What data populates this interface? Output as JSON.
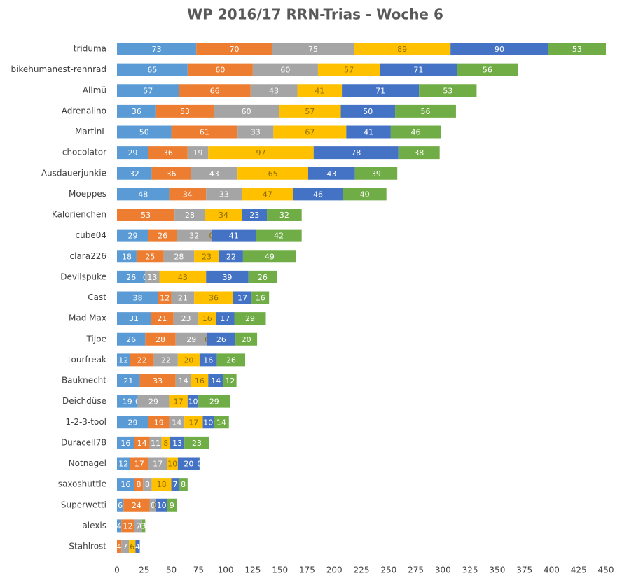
{
  "chart_data": {
    "type": "stacked-bar",
    "orientation": "horizontal",
    "title": "WP 2016/17 RRN-Trias - Woche 6",
    "categories": [
      "triduma",
      "bikehumanest-rennrad",
      "Allmü",
      "Adrenalino",
      "MartinL",
      "chocolator",
      "Ausdauerjunkie",
      "Moeppes",
      "Kalorienchen",
      "cube04",
      "clara226",
      "Devilspuke",
      "Cast",
      "Mad Max",
      "TiJoe",
      "tourfreak",
      "Bauknecht",
      "Deichdüse",
      "1-2-3-tool",
      "Duracell78",
      "Notnagel",
      "saxoshuttle",
      "Superwetti",
      "alexis",
      "Stahlrost"
    ],
    "series": [
      {
        "color": "#5b9bd5",
        "label_color": "#ffffff",
        "values": [
          73,
          65,
          57,
          36,
          50,
          29,
          32,
          48,
          0,
          29,
          18,
          26,
          38,
          31,
          26,
          12,
          21,
          19,
          29,
          16,
          12,
          16,
          6,
          4,
          0
        ]
      },
      {
        "color": "#ed7d31",
        "label_color": "#ffffff",
        "values": [
          70,
          60,
          66,
          53,
          61,
          36,
          36,
          34,
          53,
          26,
          25,
          0,
          12,
          21,
          28,
          22,
          33,
          0,
          19,
          14,
          17,
          8,
          24,
          12,
          4
        ]
      },
      {
        "color": "#a5a5a5",
        "label_color": "#ffffff",
        "values": [
          75,
          60,
          43,
          60,
          33,
          19,
          43,
          33,
          28,
          32,
          28,
          13,
          21,
          23,
          29,
          22,
          14,
          29,
          14,
          11,
          17,
          8,
          6,
          7,
          7
        ]
      },
      {
        "color": "#ffc000",
        "label_color": "#8c6d00",
        "values": [
          89,
          57,
          41,
          57,
          67,
          97,
          65,
          47,
          34,
          0,
          23,
          43,
          36,
          16,
          0,
          20,
          16,
          17,
          17,
          8,
          10,
          18,
          0,
          0,
          6
        ]
      },
      {
        "color": "#4472c4",
        "label_color": "#ffffff",
        "values": [
          90,
          71,
          71,
          50,
          41,
          78,
          43,
          46,
          23,
          41,
          22,
          39,
          17,
          17,
          26,
          16,
          14,
          10,
          10,
          13,
          20,
          7,
          10,
          0,
          4
        ]
      },
      {
        "color": "#70ad47",
        "label_color": "#ffffff",
        "values": [
          53,
          56,
          53,
          56,
          46,
          38,
          39,
          40,
          32,
          42,
          49,
          26,
          16,
          29,
          20,
          26,
          12,
          29,
          14,
          23,
          0,
          8,
          9,
          3,
          0
        ]
      }
    ],
    "xlim": [
      0,
      450
    ],
    "xticks": [
      0,
      25,
      50,
      75,
      100,
      125,
      150,
      175,
      200,
      225,
      250,
      275,
      300,
      325,
      350,
      375,
      400,
      425,
      450
    ],
    "grid": false
  }
}
